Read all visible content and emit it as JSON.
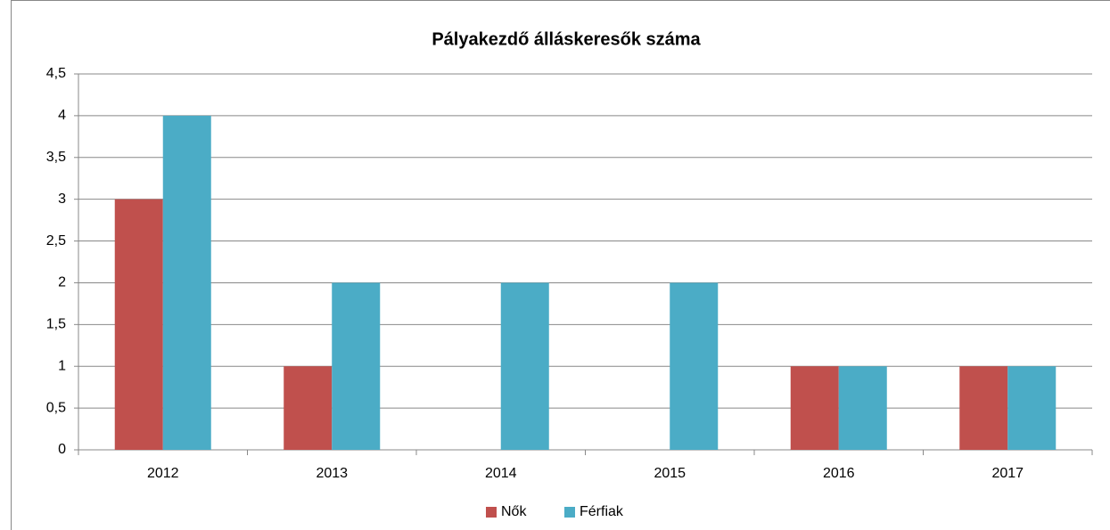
{
  "chart_data": {
    "type": "bar",
    "title": "Pályakezdő álláskeresők száma",
    "categories": [
      "2012",
      "2013",
      "2014",
      "2015",
      "2016",
      "2017"
    ],
    "series": [
      {
        "name": "Nők",
        "color": "#c0504d",
        "values": [
          3,
          1,
          0,
          0,
          1,
          1
        ]
      },
      {
        "name": "Férfiak",
        "color": "#4bacc6",
        "values": [
          4,
          2,
          2,
          2,
          1,
          1
        ]
      }
    ],
    "ylim": [
      0,
      4.5
    ],
    "yticks": [
      0,
      {
        "value": 0.5,
        "label": "0,5"
      },
      1,
      {
        "value": 1.5,
        "label": "1,5"
      },
      2,
      {
        "value": 2.5,
        "label": "2,5"
      },
      3,
      {
        "value": 3.5,
        "label": "3,5"
      },
      4,
      {
        "value": 4.5,
        "label": "4,5"
      }
    ],
    "grid": true,
    "legend": "bottom"
  }
}
